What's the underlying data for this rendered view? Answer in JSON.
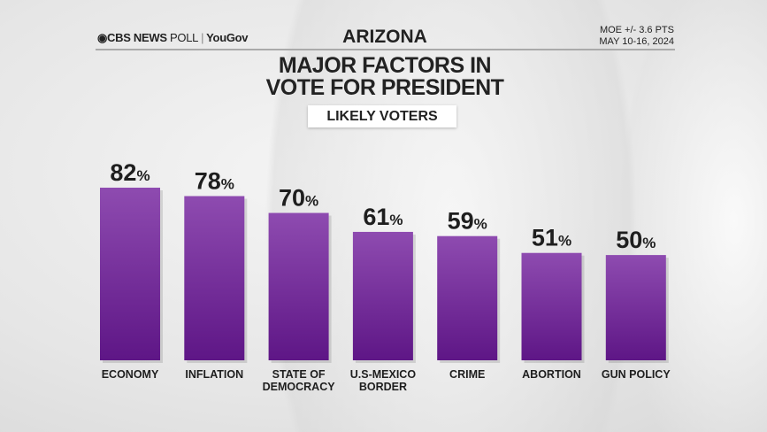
{
  "header": {
    "logo": "CBS NEWS",
    "logo_poll": "POLL",
    "logo_sep": "|",
    "logo_partner": "YouGov",
    "state": "ARIZONA",
    "moe": "MOE +/- 3.6 PTS",
    "dates": "MAY 10-16, 2024"
  },
  "colors": {
    "bar_top": "#8e4bb0",
    "bar_bottom": "#5e1686",
    "background": "#e9e9e9"
  },
  "chart_data": {
    "type": "bar",
    "title": "MAJOR FACTORS IN VOTE FOR PRESIDENT",
    "title_lines": [
      "MAJOR FACTORS IN",
      "VOTE FOR PRESIDENT"
    ],
    "subtitle": "LIKELY VOTERS",
    "categories": [
      [
        "ECONOMY"
      ],
      [
        "INFLATION"
      ],
      [
        "STATE OF",
        "DEMOCRACY"
      ],
      [
        "U.S-MEXICO",
        "BORDER"
      ],
      [
        "CRIME"
      ],
      [
        "ABORTION"
      ],
      [
        "GUN POLICY"
      ]
    ],
    "values": [
      82,
      78,
      70,
      61,
      59,
      51,
      50
    ],
    "unit": "%",
    "ylim": [
      0,
      100
    ],
    "grid": false,
    "legend": "none"
  }
}
